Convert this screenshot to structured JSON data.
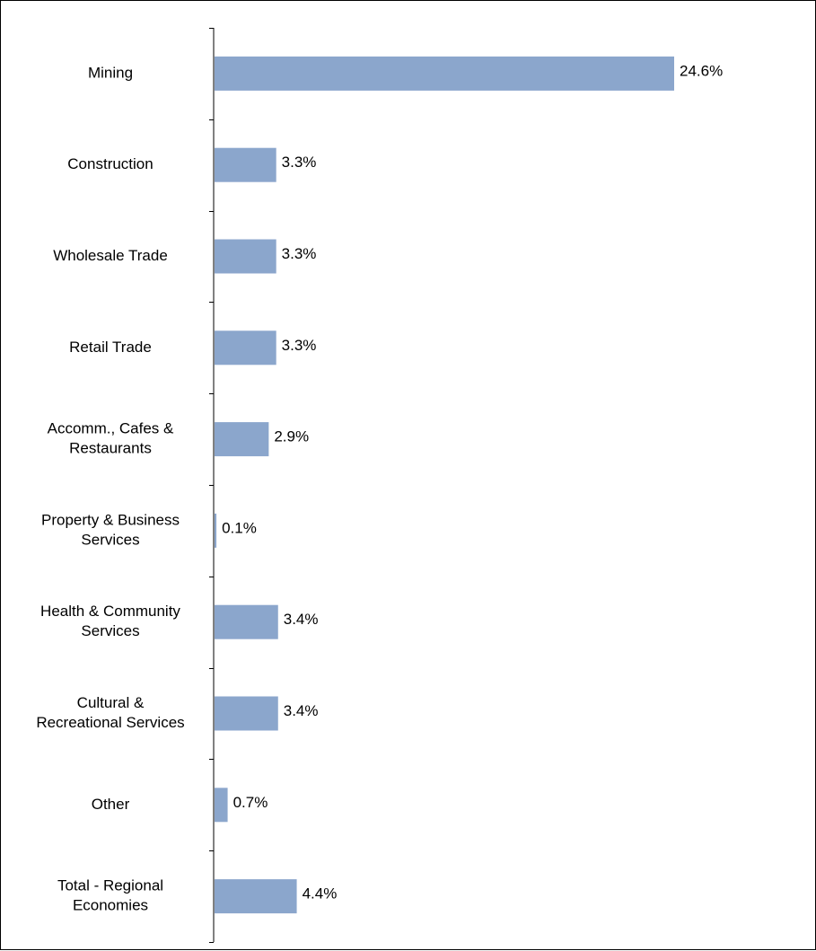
{
  "chart_data": {
    "type": "bar",
    "orientation": "horizontal",
    "title": "",
    "xlabel": "",
    "ylabel": "",
    "categories": [
      [
        "Mining"
      ],
      [
        "Construction"
      ],
      [
        "Wholesale Trade"
      ],
      [
        "Retail Trade"
      ],
      [
        "Accomm., Cafes &",
        "Restaurants"
      ],
      [
        "Property & Business",
        "Services"
      ],
      [
        "Health & Community",
        "Services"
      ],
      [
        "Cultural &",
        "Recreational Services"
      ],
      [
        "Other"
      ],
      [
        "Total - Regional",
        "Economies"
      ]
    ],
    "values": [
      24.6,
      3.3,
      3.3,
      3.3,
      2.9,
      0.1,
      3.4,
      3.4,
      0.7,
      4.4
    ],
    "value_labels": [
      "24.6%",
      "3.3%",
      "3.3%",
      "3.3%",
      "2.9%",
      "0.1%",
      "3.4%",
      "3.4%",
      "0.7%",
      "4.4%"
    ],
    "xlim": [
      0,
      24.6
    ],
    "grid": false,
    "legend": "none",
    "colors": {
      "bar": "#8ba6cc",
      "axis": "#000000",
      "text": "#000000"
    }
  }
}
